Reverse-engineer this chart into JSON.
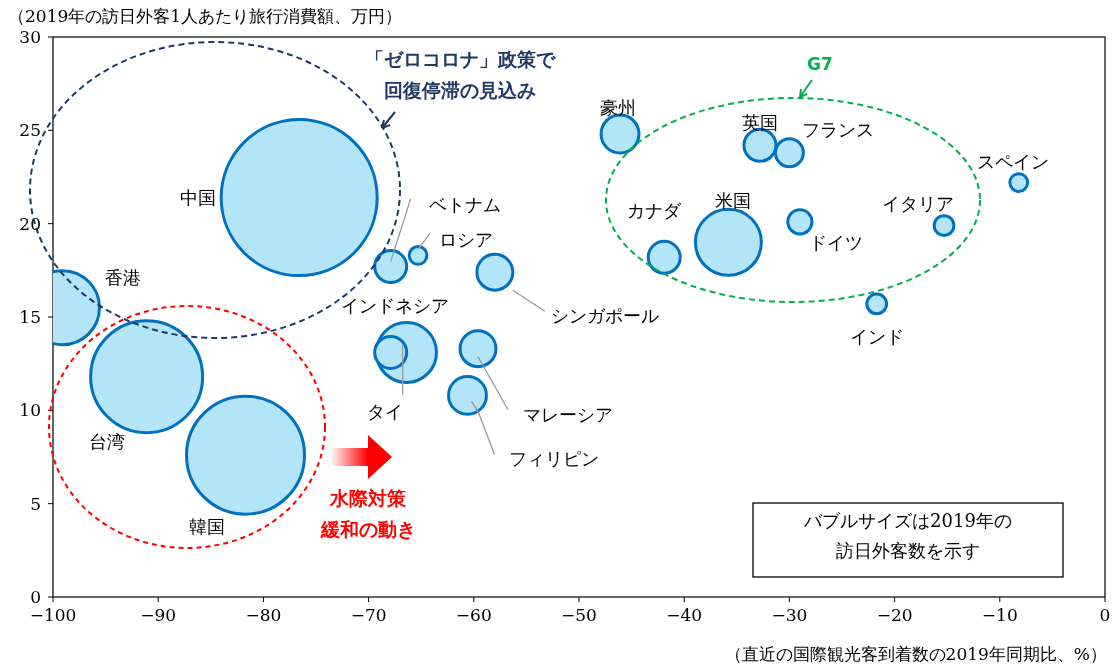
{
  "chart_data": {
    "type": "bubble",
    "xlabel": "（直近の国際観光客到着数の2019年同期比、%）",
    "ylabel": "（2019年の訪日外客1人あたり旅行消費額、万円）",
    "xlim": [
      -100,
      0
    ],
    "xticks": [
      -100,
      -90,
      -80,
      -70,
      -60,
      -50,
      -40,
      -30,
      -20,
      -10,
      0
    ],
    "ylim": [
      0,
      30
    ],
    "yticks": [
      0,
      5,
      10,
      15,
      20,
      25,
      30
    ],
    "grid": false,
    "series": [
      {
        "name": "香港",
        "color": "#b4e4f8",
        "x": [
          -99.1
        ],
        "values": [
          15.5
        ],
        "sizes": [
          0.225
        ]
      },
      {
        "name": "中国",
        "color": "#b4e4f8",
        "x": [
          -76.6
        ],
        "values": [
          21.4
        ],
        "sizes": [
          1
        ]
      },
      {
        "name": "台湾",
        "color": "#b4e4f8",
        "x": [
          -91.1
        ],
        "values": [
          11.8
        ],
        "sizes": [
          0.515
        ]
      },
      {
        "name": "韓国",
        "color": "#b4e4f8",
        "x": [
          -81.7
        ],
        "values": [
          7.6
        ],
        "sizes": [
          0.572
        ]
      },
      {
        "name": "ベトナム",
        "color": "#b4e4f8",
        "x": [
          -67.9
        ],
        "values": [
          17.7
        ],
        "sizes": [
          0.042
        ]
      },
      {
        "name": "ロシア",
        "color": "#b4e4f8",
        "x": [
          -65.3
        ],
        "values": [
          18.3
        ],
        "sizes": [
          0.013
        ]
      },
      {
        "name": "シンガポール",
        "color": "#b4e4f8",
        "x": [
          -58.0
        ],
        "values": [
          17.4
        ],
        "sizes": [
          0.053
        ]
      },
      {
        "name": "インドネシア",
        "color": "#b4e4f8",
        "x": [
          -66.4
        ],
        "values": [
          13.1
        ],
        "sizes": [
          0.148
        ]
      },
      {
        "name": "タイ",
        "color": "#b4e4f8",
        "x": [
          -67.9
        ],
        "values": [
          13.1
        ],
        "sizes": [
          0.042
        ]
      },
      {
        "name": "マレーシア",
        "color": "#b4e4f8",
        "x": [
          -59.6
        ],
        "values": [
          13.3
        ],
        "sizes": [
          0.053
        ]
      },
      {
        "name": "フィリピン",
        "color": "#b4e4f8",
        "x": [
          -60.6
        ],
        "values": [
          10.8
        ],
        "sizes": [
          0.059
        ]
      },
      {
        "name": "豪州",
        "color": "#b4e4f8",
        "x": [
          -46.1
        ],
        "values": [
          24.8
        ],
        "sizes": [
          0.059
        ]
      },
      {
        "name": "英国",
        "color": "#b4e4f8",
        "x": [
          -32.8
        ],
        "values": [
          24.2
        ],
        "sizes": [
          0.042
        ]
      },
      {
        "name": "フランス",
        "color": "#b4e4f8",
        "x": [
          -30.0
        ],
        "values": [
          23.8
        ],
        "sizes": [
          0.032
        ]
      },
      {
        "name": "カナダ",
        "color": "#b4e4f8",
        "x": [
          -41.9
        ],
        "values": [
          18.2
        ],
        "sizes": [
          0.042
        ]
      },
      {
        "name": "米国",
        "color": "#b4e4f8",
        "x": [
          -35.8
        ],
        "values": [
          19.0
        ],
        "sizes": [
          0.179
        ]
      },
      {
        "name": "ドイツ",
        "color": "#b4e4f8",
        "x": [
          -29.0
        ],
        "values": [
          20.1
        ],
        "sizes": [
          0.024
        ]
      },
      {
        "name": "イタリア",
        "color": "#b4e4f8",
        "x": [
          -15.3
        ],
        "values": [
          19.9
        ],
        "sizes": [
          0.016
        ]
      },
      {
        "name": "スペイン",
        "color": "#b4e4f8",
        "x": [
          -8.2
        ],
        "values": [
          22.2
        ],
        "sizes": [
          0.013
        ]
      },
      {
        "name": "インド",
        "color": "#b4e4f8",
        "x": [
          -21.7
        ],
        "values": [
          15.7
        ],
        "sizes": [
          0.016
        ]
      }
    ],
    "annotations": [
      "「ゼロコロナ」政策で",
      "回復停滞の見込み",
      "G7",
      "水際対策",
      "緩和の動き",
      "バブルサイズは2019年の",
      "訪日外客数を示す"
    ]
  }
}
